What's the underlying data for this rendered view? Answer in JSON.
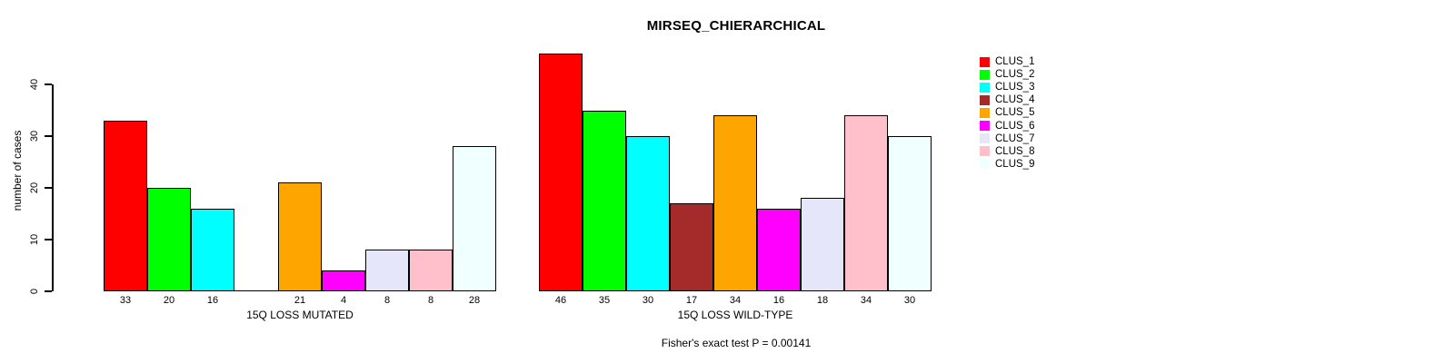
{
  "chart_data": {
    "type": "bar",
    "title": "MIRSEQ_CHIERARCHICAL",
    "ylabel": "number of cases",
    "ylim": [
      0,
      46
    ],
    "yticks": [
      0,
      10,
      20,
      30,
      40
    ],
    "grid": false,
    "legend_position": "right",
    "bar_value_labels": true,
    "categories": [
      "CLUS_1",
      "CLUS_2",
      "CLUS_3",
      "CLUS_4",
      "CLUS_5",
      "CLUS_6",
      "CLUS_7",
      "CLUS_8",
      "CLUS_9"
    ],
    "series_colors": [
      "#FF0000",
      "#00FF00",
      "#00FFFF",
      "#A52A2A",
      "#FFA500",
      "#FF00FF",
      "#E6E6FA",
      "#FFC0CB",
      "#F0FFFF"
    ],
    "groups": [
      {
        "xlabel": "15Q LOSS MUTATED",
        "values": [
          33,
          20,
          16,
          0,
          21,
          4,
          8,
          8,
          28
        ]
      },
      {
        "xlabel": "15Q LOSS WILD-TYPE",
        "values": [
          46,
          35,
          30,
          17,
          34,
          16,
          18,
          34,
          30
        ]
      }
    ],
    "legend": [
      {
        "label": "CLUS_1",
        "color": "#FF0000"
      },
      {
        "label": "CLUS_2",
        "color": "#00FF00"
      },
      {
        "label": "CLUS_3",
        "color": "#00FFFF"
      },
      {
        "label": "CLUS_4",
        "color": "#A52A2A"
      },
      {
        "label": "CLUS_5",
        "color": "#FFA500"
      },
      {
        "label": "CLUS_6",
        "color": "#FF00FF"
      },
      {
        "label": "CLUS_7",
        "color": "#E6E6FA"
      },
      {
        "label": "CLUS_8",
        "color": "#FFC0CB"
      },
      {
        "label": "CLUS_9",
        "color": "#F0FFFF"
      }
    ]
  },
  "footnote": "Fisher's exact test P = 0.00141"
}
